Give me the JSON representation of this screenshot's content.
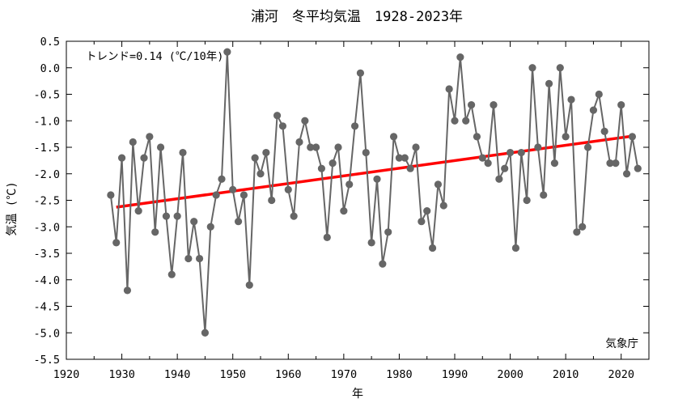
{
  "chart_data": {
    "type": "line",
    "title": "浦河　冬平均気温　1928-2023年",
    "xlabel": "年",
    "ylabel": "気温 (℃)",
    "trend_label": "トレンド=0.14 (℃/10年)",
    "source": "気象庁",
    "xlim": [
      1920,
      2025
    ],
    "ylim": [
      -5.5,
      0.5
    ],
    "x_ticks": [
      1920,
      1930,
      1940,
      1950,
      1960,
      1970,
      1980,
      1990,
      2000,
      2010,
      2020
    ],
    "y_ticks": [
      "0.5",
      "0.0",
      "-0.5",
      "-1.0",
      "-1.5",
      "-2.0",
      "-2.5",
      "-3.0",
      "-3.5",
      "-4.0",
      "-4.5",
      "-5.0",
      "-5.5"
    ],
    "grid": false,
    "colors": {
      "series": "#666666",
      "trend": "#ff0000"
    },
    "series": [
      {
        "x": [
          1928,
          1929,
          1930,
          1931,
          1932,
          1933,
          1934,
          1935,
          1936,
          1937,
          1938,
          1939,
          1940,
          1941,
          1942,
          1943,
          1944,
          1945,
          1946,
          1947,
          1948,
          1949,
          1950,
          1951,
          1952,
          1953,
          1954,
          1955,
          1956,
          1957,
          1958,
          1959,
          1960,
          1961,
          1962,
          1963,
          1964,
          1965,
          1966,
          1967,
          1968,
          1969,
          1970,
          1971,
          1972,
          1973,
          1974,
          1975,
          1976,
          1977,
          1978,
          1979,
          1980,
          1981,
          1982,
          1983,
          1984,
          1985,
          1986,
          1987,
          1988,
          1989,
          1990,
          1991,
          1992,
          1993,
          1994,
          1995,
          1996,
          1997,
          1998,
          1999,
          2000,
          2001,
          2002,
          2003,
          2004,
          2005,
          2006,
          2007,
          2008,
          2009,
          2010,
          2011,
          2012,
          2013,
          2014,
          2015,
          2016,
          2017,
          2018,
          2019,
          2020,
          2021,
          2022,
          2023
        ],
        "values": [
          -2.4,
          -3.3,
          -1.7,
          -4.2,
          -1.4,
          -2.7,
          -1.7,
          -1.3,
          -3.1,
          -1.5,
          -2.8,
          -3.9,
          -2.8,
          -1.6,
          -3.6,
          -2.9,
          -3.6,
          -5.0,
          -3.0,
          -2.4,
          -2.1,
          0.3,
          -2.3,
          -2.9,
          -2.4,
          -4.1,
          -1.7,
          -2.0,
          -1.6,
          -2.5,
          -0.9,
          -1.1,
          -2.3,
          -2.8,
          -1.4,
          -1.0,
          -1.5,
          -1.5,
          -1.9,
          -3.2,
          -1.8,
          -1.5,
          -2.7,
          -2.2,
          -1.1,
          -0.1,
          -1.6,
          -3.3,
          -2.1,
          -3.7,
          -3.1,
          -1.3,
          -1.7,
          -1.7,
          -1.9,
          -1.5,
          -2.9,
          -2.7,
          -3.4,
          -2.2,
          -2.6,
          -0.4,
          -1.0,
          0.2,
          -1.0,
          -0.7,
          -1.3,
          -1.7,
          -1.8,
          -0.7,
          -2.1,
          -1.9,
          -1.6,
          -3.4,
          -1.6,
          -2.5,
          0.0,
          -1.5,
          -2.4,
          -0.3,
          -1.8,
          0.0,
          -1.3,
          -0.6,
          -3.1,
          -3.0,
          -1.5,
          -0.8,
          -0.5,
          -1.2,
          -1.8,
          -1.8,
          -0.7,
          -2.0,
          -1.3,
          -1.9
        ]
      }
    ],
    "trend": {
      "x": [
        1929,
        2022
      ],
      "values": [
        -2.63,
        -1.29
      ]
    }
  }
}
